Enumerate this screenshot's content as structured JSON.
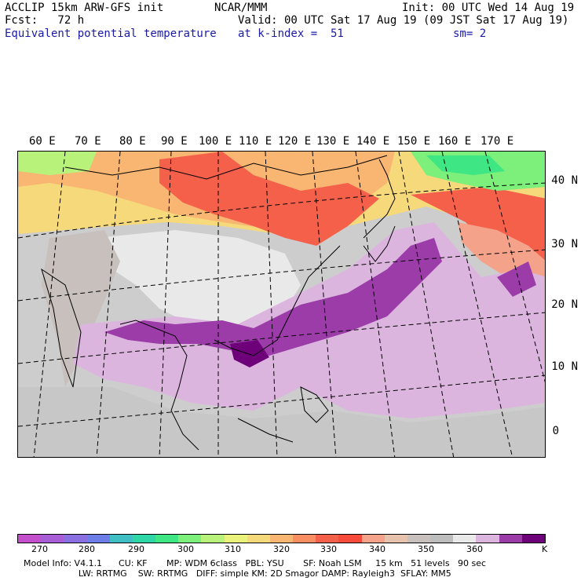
{
  "header": {
    "model_title": "ACCLIP 15km ARW-GFS init",
    "forecast": "Fcst:   72 h",
    "field_name": "Equivalent potential temperature",
    "org": "NCAR/MMM",
    "valid": "Valid: 00 UTC Sat 17 Aug 19 (09 JST Sat 17 Aug 19)",
    "level": "at k-index =  51",
    "init": "Init: 00 UTC Wed 14 Aug 19",
    "smoothing": "sm= 2"
  },
  "map": {
    "lon_labels": [
      "60 E",
      "70 E",
      "80 E",
      "90 E",
      "100 E",
      "110 E",
      "120 E",
      "130 E",
      "140 E",
      "150 E",
      "160 E",
      "170 E"
    ],
    "lat_labels": [
      "40 N",
      "30 N",
      "20 N",
      "10 N",
      "0"
    ]
  },
  "colorbar": {
    "colors": [
      "#c44fcc",
      "#a85ed6",
      "#8a6fe0",
      "#6d7ee8",
      "#3fbfc4",
      "#2fd6a6",
      "#3fe684",
      "#7cf07a",
      "#b8f27a",
      "#e9f27a",
      "#f6d97a",
      "#f8b672",
      "#f88e62",
      "#f4604a",
      "#f74a3a",
      "#f4a28a",
      "#e7c3ae",
      "#c7c0bc",
      "#bdbdbd",
      "#e9e9e9",
      "#dcb5df",
      "#9b3ca8",
      "#6e007a"
    ],
    "ticks": [
      "270",
      "280",
      "290",
      "300",
      "310",
      "320",
      "330",
      "340",
      "350",
      "360"
    ],
    "unit": "K"
  },
  "footer": {
    "line1": "Model Info: V4.1.1      CU: KF       MP: WDM 6class   PBL: YSU       SF: Noah LSM     15 km   51 levels   90 sec",
    "line2": "                    LW: RRTMG    SW: RRTMG   DIFF: simple KM: 2D Smagor DAMP: Rayleigh3  SFLAY: MM5"
  }
}
